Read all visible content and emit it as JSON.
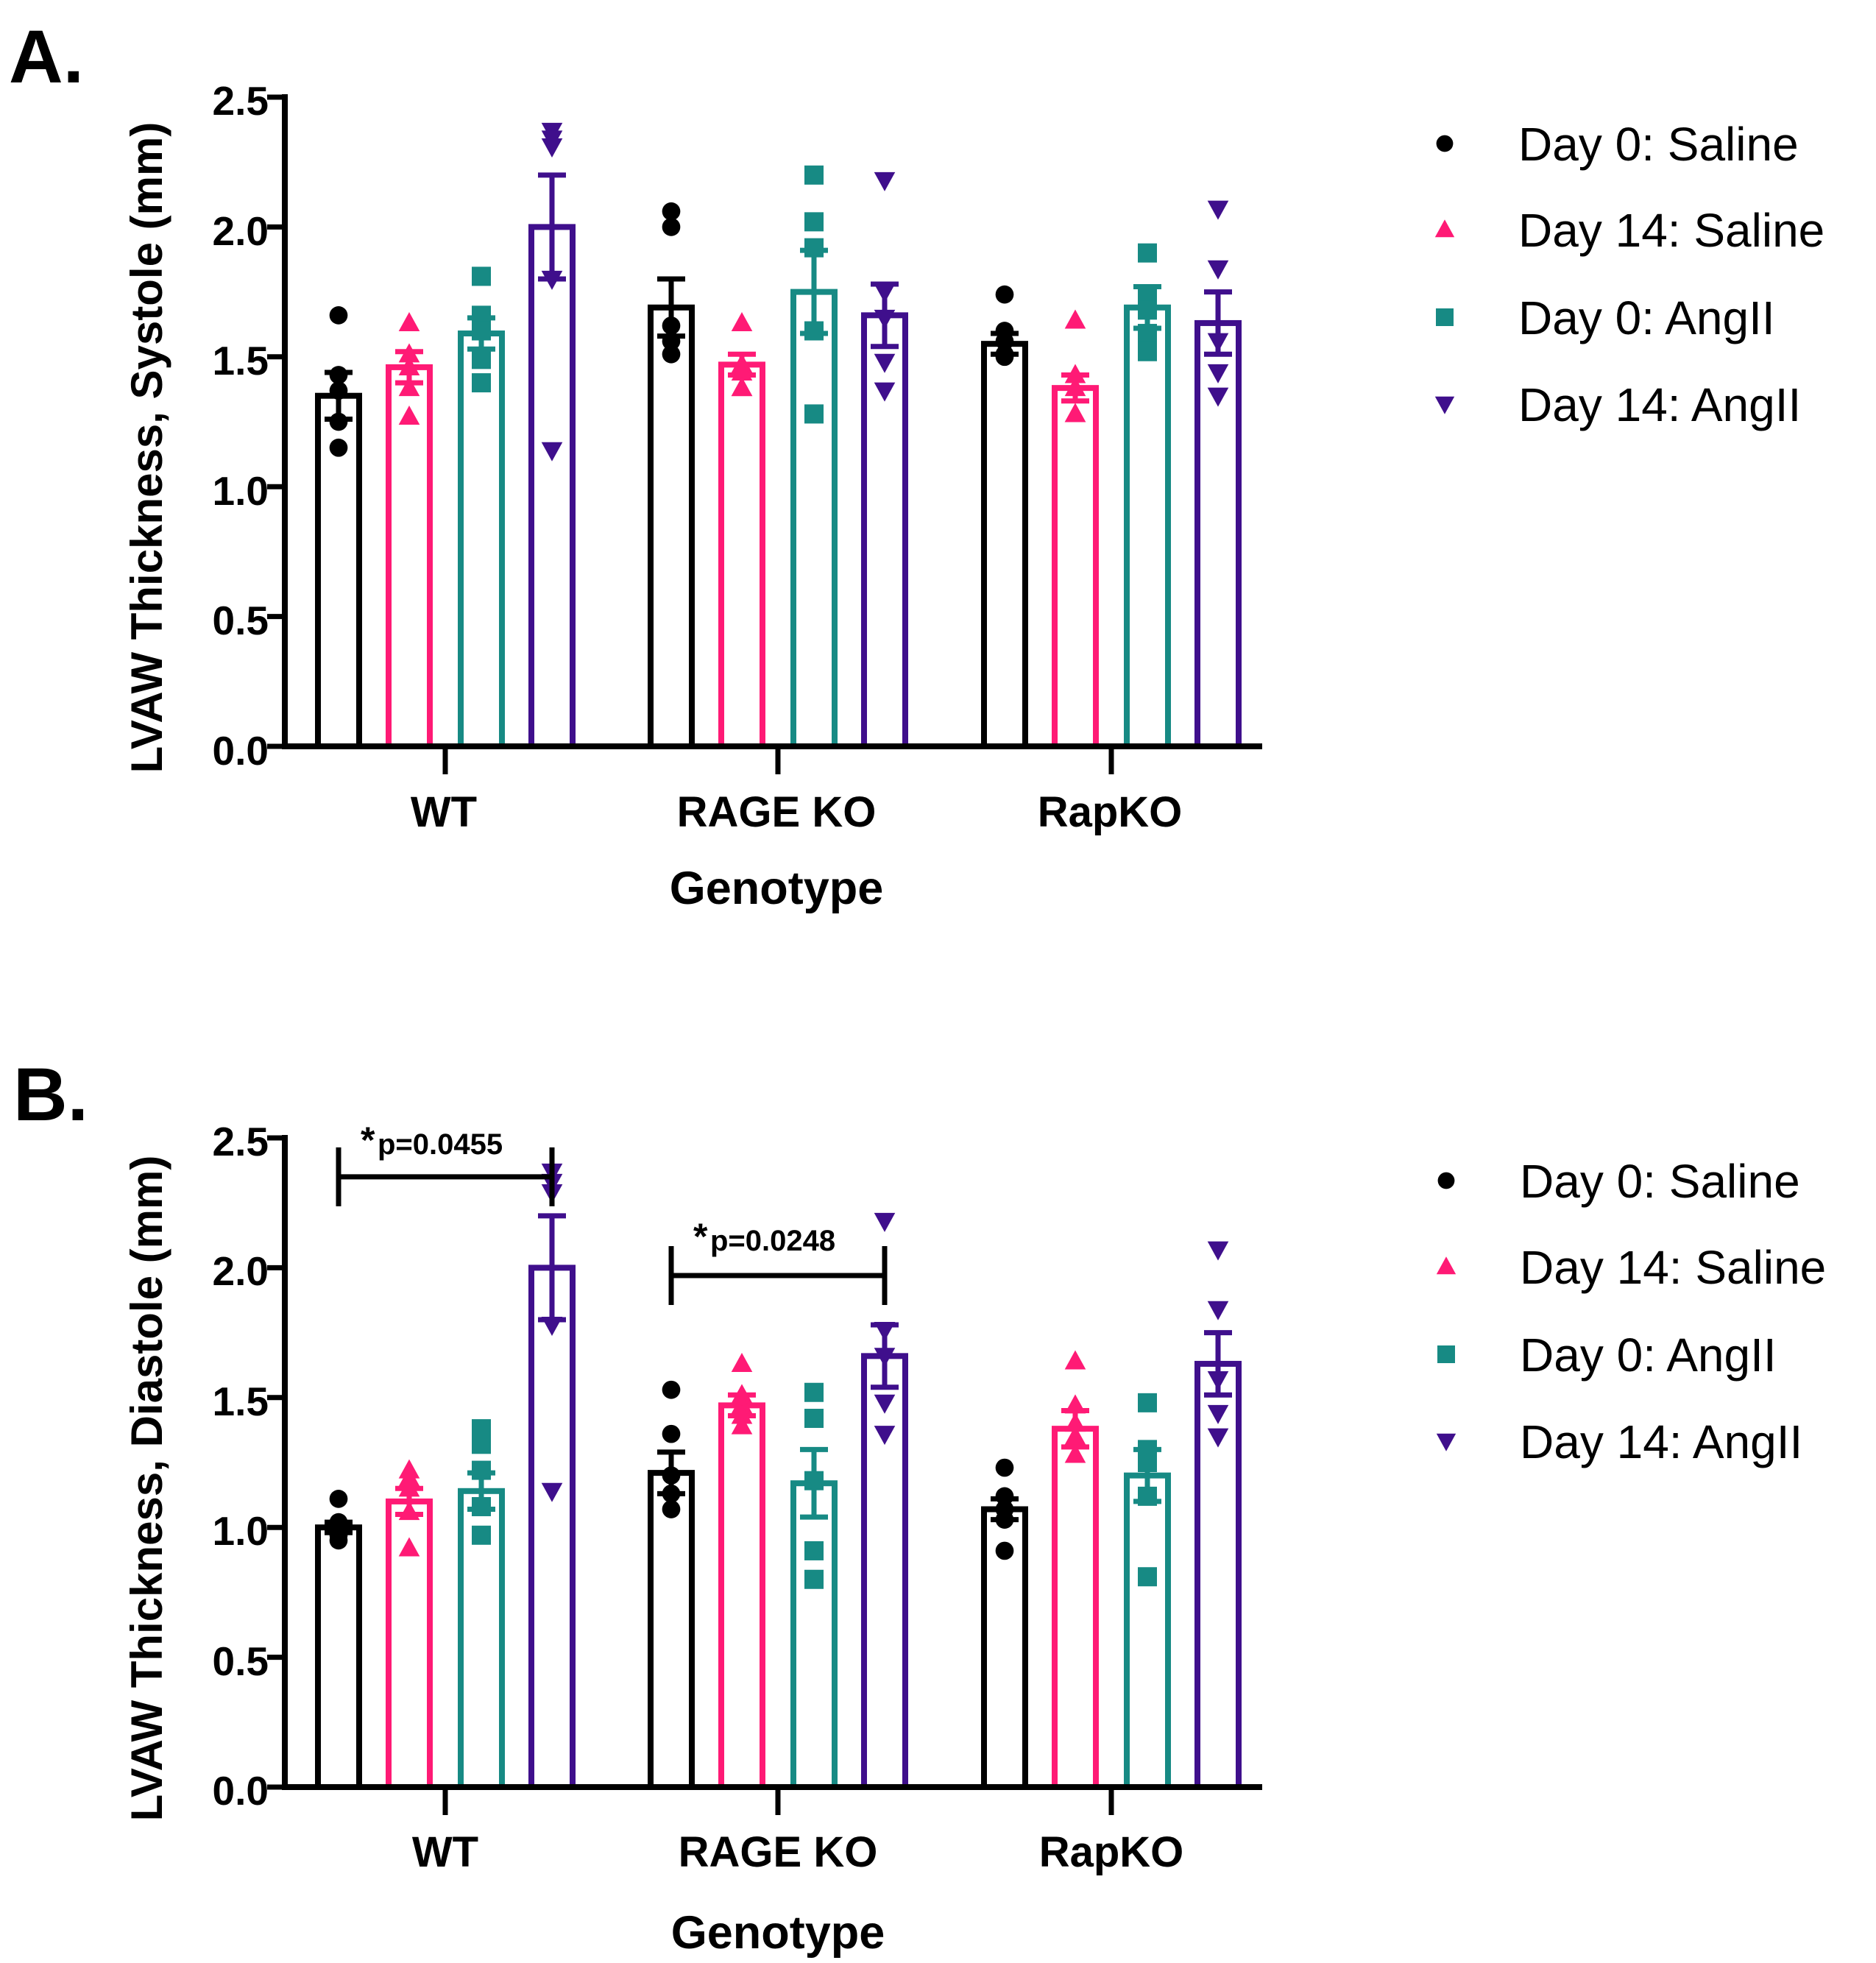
{
  "colors": {
    "day0_saline": "#000000",
    "day14_saline": "#ff1a75",
    "day0_angii": "#178a84",
    "day14_angii": "#3f0f8c"
  },
  "series_markers": [
    "circle",
    "triangle-up",
    "square",
    "triangle-down"
  ],
  "chart_data": [
    {
      "panel": "A.",
      "type": "bar",
      "title": "",
      "xlabel": "Genotype",
      "ylabel": "LVAW Thickness, Systole (mm)",
      "ylim": [
        0,
        2.5
      ],
      "yticks": [
        "0.0",
        "0.5",
        "1.0",
        "1.5",
        "2.0",
        "2.5"
      ],
      "categories": [
        "WT",
        "RAGE KO",
        "RapKO"
      ],
      "legend": [
        "Day 0: Saline",
        "Day 14: Saline",
        "Day 0: AngII",
        "Day 14: AngII"
      ],
      "series": [
        {
          "name": "Day 0: Saline",
          "values": [
            1.35,
            1.69,
            1.55
          ],
          "sem": [
            0.09,
            0.11,
            0.04
          ],
          "points": [
            [
              1.66,
              1.43,
              1.37,
              1.25,
              1.15
            ],
            [
              2.06,
              2.0,
              1.62,
              1.56,
              1.51
            ],
            [
              1.74,
              1.6,
              1.56,
              1.51,
              1.5
            ]
          ]
        },
        {
          "name": "Day 14: Saline",
          "values": [
            1.46,
            1.47,
            1.38
          ],
          "sem": [
            0.06,
            0.04,
            0.05
          ],
          "points": [
            [
              1.63,
              1.51,
              1.46,
              1.38,
              1.27
            ],
            [
              1.63,
              1.47,
              1.44,
              1.38,
              1.38
            ],
            [
              1.64,
              1.43,
              1.38,
              1.28,
              1.28
            ]
          ]
        },
        {
          "name": "Day 0: AngII",
          "values": [
            1.59,
            1.75,
            1.69
          ],
          "sem": [
            0.06,
            0.16,
            0.08
          ],
          "points": [
            [
              1.81,
              1.66,
              1.6,
              1.49,
              1.4
            ],
            [
              2.2,
              2.02,
              1.92,
              1.6,
              1.28
            ],
            [
              1.9,
              1.74,
              1.68,
              1.59,
              1.52
            ]
          ]
        },
        {
          "name": "Day 14: AngII",
          "values": [
            2.0,
            1.66,
            1.63
          ],
          "sem": [
            0.2,
            0.12,
            0.12
          ],
          "points": [
            [
              2.37,
              2.34,
              2.31,
              1.8,
              1.14
            ],
            [
              2.18,
              1.75,
              1.65,
              1.48,
              1.37
            ],
            [
              2.07,
              1.84,
              1.56,
              1.44,
              1.35
            ]
          ]
        }
      ],
      "annotations": []
    },
    {
      "panel": "B.",
      "type": "bar",
      "title": "",
      "xlabel": "Genotype",
      "ylabel": "LVAW Thickness, Diastole (mm)",
      "ylim": [
        0,
        2.5
      ],
      "yticks": [
        "0.0",
        "0.5",
        "1.0",
        "1.5",
        "2.0",
        "2.5"
      ],
      "categories": [
        "WT",
        "RAGE KO",
        "RapKO"
      ],
      "legend": [
        "Day 0: Saline",
        "Day 14: Saline",
        "Day 0: AngII",
        "Day 14: AngII"
      ],
      "series": [
        {
          "name": "Day 0: Saline",
          "values": [
            1.0,
            1.21,
            1.07
          ],
          "sem": [
            0.02,
            0.08,
            0.04
          ],
          "points": [
            [
              1.11,
              1.02,
              0.99,
              0.97,
              0.95
            ],
            [
              1.53,
              1.36,
              1.2,
              1.13,
              1.07
            ],
            [
              1.23,
              1.12,
              1.07,
              1.03,
              0.91
            ]
          ]
        },
        {
          "name": "Day 14: Saline",
          "values": [
            1.1,
            1.47,
            1.38
          ],
          "sem": [
            0.05,
            0.04,
            0.07
          ],
          "points": [
            [
              1.22,
              1.19,
              1.15,
              1.06,
              0.92
            ],
            [
              1.63,
              1.51,
              1.47,
              1.43,
              1.39
            ],
            [
              1.64,
              1.47,
              1.4,
              1.35,
              1.28
            ]
          ]
        },
        {
          "name": "Day 0: AngII",
          "values": [
            1.14,
            1.17,
            1.2
          ],
          "sem": [
            0.07,
            0.13,
            0.1
          ],
          "points": [
            [
              1.38,
              1.32,
              1.22,
              1.08,
              0.97
            ],
            [
              1.52,
              1.42,
              1.18,
              0.91,
              0.8
            ],
            [
              1.48,
              1.3,
              1.25,
              1.12,
              0.81
            ]
          ]
        },
        {
          "name": "Day 14: AngII",
          "values": [
            2.0,
            1.66,
            1.63
          ],
          "sem": [
            0.2,
            0.12,
            0.12
          ],
          "points": [
            [
              2.37,
              2.33,
              2.29,
              1.78,
              1.14
            ],
            [
              2.18,
              1.76,
              1.66,
              1.48,
              1.36
            ],
            [
              2.07,
              1.84,
              1.57,
              1.44,
              1.35
            ]
          ]
        }
      ],
      "annotations": [
        {
          "label": "p=0.0455",
          "star": "*",
          "category": 0,
          "from_series": 0,
          "to_series": 3,
          "y": 2.35
        },
        {
          "label": "p=0.0248",
          "star": "*",
          "category": 1,
          "from_series": 0,
          "to_series": 3,
          "y": 1.97
        }
      ]
    }
  ]
}
